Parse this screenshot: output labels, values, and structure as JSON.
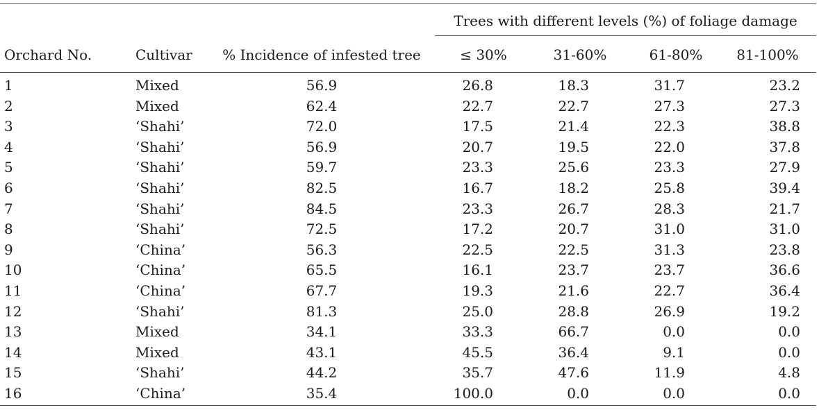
{
  "table": {
    "group_header": "Trees with different levels (%) of foliage damage",
    "headers": [
      "Orchard No.",
      "Cultivar",
      "% Incidence of infested tree",
      "≤ 30%",
      "31-60%",
      "61-80%",
      "81-100%"
    ],
    "rows": [
      [
        "1",
        "Mixed",
        "56.9",
        "26.8",
        "18.3",
        "31.7",
        "23.2"
      ],
      [
        "2",
        "Mixed",
        "62.4",
        "22.7",
        "22.7",
        "27.3",
        "27.3"
      ],
      [
        "3",
        "‘Shahi’",
        "72.0",
        "17.5",
        "21.4",
        "22.3",
        "38.8"
      ],
      [
        "4",
        "‘Shahi’",
        "56.9",
        "20.7",
        "19.5",
        "22.0",
        "37.8"
      ],
      [
        "5",
        "‘Shahi’",
        "59.7",
        "23.3",
        "25.6",
        "23.3",
        "27.9"
      ],
      [
        "6",
        "‘Shahi’",
        "82.5",
        "16.7",
        "18.2",
        "25.8",
        "39.4"
      ],
      [
        "7",
        "‘Shahi’",
        "84.5",
        "23.3",
        "26.7",
        "28.3",
        "21.7"
      ],
      [
        "8",
        "‘Shahi’",
        "72.5",
        "17.2",
        "20.7",
        "31.0",
        "31.0"
      ],
      [
        "9",
        "‘China’",
        "56.3",
        "22.5",
        "22.5",
        "31.3",
        "23.8"
      ],
      [
        "10",
        "‘China’",
        "65.5",
        "16.1",
        "23.7",
        "23.7",
        "36.6"
      ],
      [
        "11",
        "‘China’",
        "67.7",
        "19.3",
        "21.6",
        "22.7",
        "36.4"
      ],
      [
        "12",
        "‘Shahi’",
        "81.3",
        "25.0",
        "28.8",
        "26.9",
        "19.2"
      ],
      [
        "13",
        "Mixed",
        "34.1",
        "33.3",
        "66.7",
        "0.0",
        "0.0"
      ],
      [
        "14",
        "Mixed",
        "43.1",
        "45.5",
        "36.4",
        "9.1",
        "0.0"
      ],
      [
        "15",
        "‘Shahi’",
        "44.2",
        "35.7",
        "47.6",
        "11.9",
        "4.8"
      ],
      [
        "16",
        "‘China’",
        "35.4",
        "100.0",
        "0.0",
        "0.0",
        "0.0"
      ]
    ]
  }
}
